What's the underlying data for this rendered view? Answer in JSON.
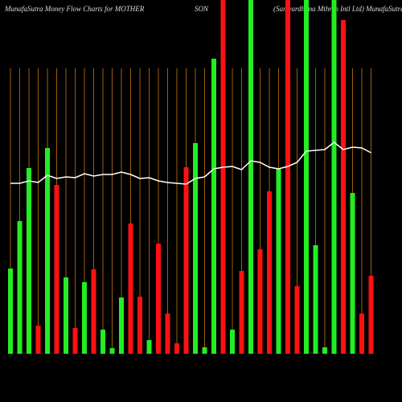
{
  "chart_data": {
    "type": "bar",
    "title_parts": [
      "MunafaSutra  Money Flow  Charts for MOTHER",
      "SON",
      "(Samvardhana  Mthrsn  Intl Ltd) MunafaSutra.com"
    ],
    "values": [
      106,
      165,
      231,
      35,
      256,
      210,
      95,
      32,
      89,
      105,
      30,
      7,
      70,
      162,
      71,
      17,
      137,
      50,
      13,
      232,
      262,
      8,
      367,
      440,
      30,
      103,
      440,
      130,
      202,
      230,
      440,
      84,
      440,
      135,
      8,
      440,
      415,
      200,
      50,
      97
    ],
    "bar_colors": [
      "#22ee22",
      "#22ee22",
      "#22ee22",
      "#ff1111",
      "#22ee22",
      "#ff1111",
      "#22ee22",
      "#ff1111",
      "#22ee22",
      "#ff1111",
      "#22ee22",
      "#22ee22",
      "#22ee22",
      "#ff1111",
      "#ff1111",
      "#22ee22",
      "#ff1111",
      "#ff1111",
      "#ff1111",
      "#ff1111",
      "#22ee22",
      "#22ee22",
      "#22ee22",
      "#ff1111",
      "#22ee22",
      "#ff1111",
      "#22ee22",
      "#ff1111",
      "#ff1111",
      "#22ee22",
      "#ff1111",
      "#ff1111",
      "#22ee22",
      "#22ee22",
      "#22ee22",
      "#22ee22",
      "#ff1111",
      "#22ee22",
      "#ff1111",
      "#ff1111"
    ],
    "line": {
      "color": "#ffffff",
      "values": [
        212,
        212,
        215,
        213,
        222,
        218,
        220,
        219,
        224,
        221,
        223,
        223,
        226,
        223,
        218,
        219,
        215,
        213,
        212,
        211,
        218,
        220,
        230,
        232,
        233,
        229,
        240,
        238,
        232,
        230,
        233,
        238,
        252,
        253,
        254,
        263,
        254,
        257,
        256,
        250
      ]
    },
    "ylim": [
      0,
      440
    ]
  }
}
